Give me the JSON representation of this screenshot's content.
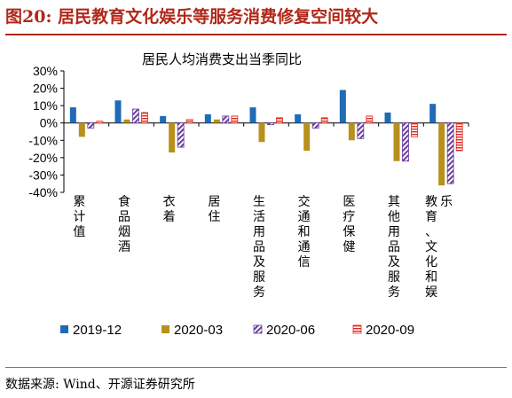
{
  "figure": {
    "title": "图20:  居民教育文化娱乐等服务消费修复空间较大",
    "source": "数据来源:  Wind、开源证券研究所"
  },
  "chart_data": {
    "type": "bar",
    "title": "居民人均消费支出当季同比",
    "xlabel": "",
    "ylabel": "",
    "ylim": [
      -40,
      30
    ],
    "yticks": [
      "30%",
      "20%",
      "10%",
      "0%",
      "-10%",
      "-20%",
      "-30%",
      "-40%"
    ],
    "categories": [
      "累计值",
      "食品烟酒",
      "衣着",
      "居住",
      "生活用品及服务",
      "交通和通信",
      "医疗保健",
      "其他用品及服务",
      "教育、文化和娱乐"
    ],
    "series": [
      {
        "name": "2019-12",
        "color": "#1f6bb5",
        "pattern": "solid",
        "values": [
          9.0,
          13.0,
          4.0,
          5.0,
          9.0,
          5.0,
          19.0,
          6.0,
          11.0
        ]
      },
      {
        "name": "2020-03",
        "color": "#b8901c",
        "pattern": "solid",
        "values": [
          -8.0,
          2.0,
          -17.0,
          2.0,
          -11.0,
          -16.0,
          -10.0,
          -22.0,
          -36.0
        ]
      },
      {
        "name": "2020-06",
        "color": "#6a3b9e",
        "pattern": "diagonal",
        "values": [
          -3.0,
          8.0,
          -14.0,
          4.0,
          -1.0,
          -3.0,
          -9.0,
          -22.0,
          -35.0
        ]
      },
      {
        "name": "2020-09",
        "color": "#e0281c",
        "pattern": "horizontal",
        "values": [
          1.0,
          6.0,
          2.0,
          4.0,
          3.0,
          3.0,
          4.0,
          -8.0,
          -16.0
        ]
      }
    ],
    "grid": false,
    "legend": "bottom"
  }
}
